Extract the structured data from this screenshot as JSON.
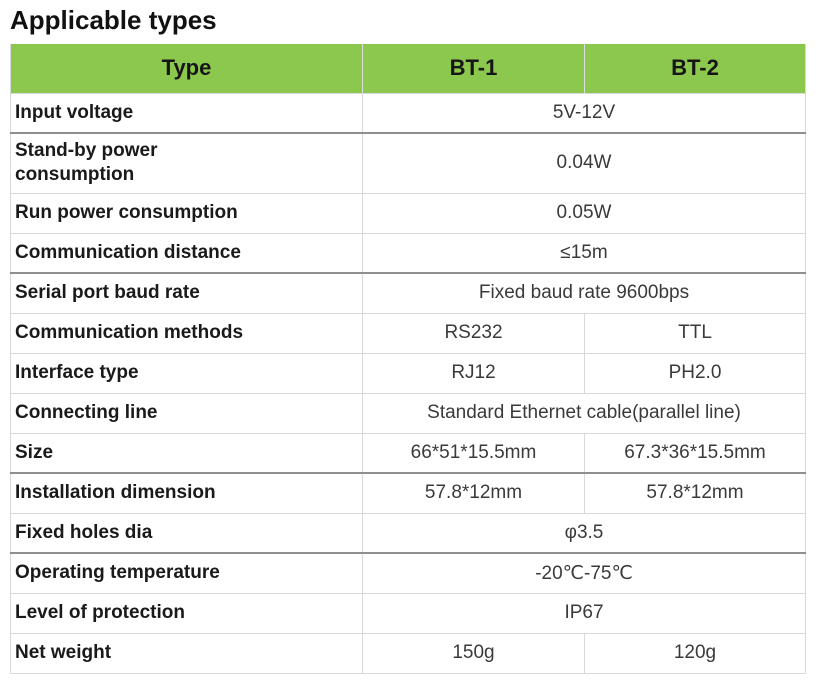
{
  "page": {
    "title": "Applicable types"
  },
  "table": {
    "columns": [
      "Type",
      "BT-1",
      "BT-2"
    ],
    "rows": [
      {
        "label": "Input voltage",
        "span": "5V-12V"
      },
      {
        "label": "Stand-by power consumption",
        "span": "0.04W"
      },
      {
        "label": "Run power consumption",
        "span": "0.05W"
      },
      {
        "label": "Communication distance",
        "span": "≤15m"
      },
      {
        "label": "Serial port baud rate",
        "span": "Fixed baud rate 9600bps"
      },
      {
        "label": "Communication methods",
        "bt1": "RS232",
        "bt2": "TTL"
      },
      {
        "label": "Interface type",
        "bt1": "RJ12",
        "bt2": "PH2.0"
      },
      {
        "label": "Connecting line",
        "span": "Standard Ethernet cable(parallel line)"
      },
      {
        "label": "Size",
        "bt1": "66*51*15.5mm",
        "bt2": "67.3*36*15.5mm"
      },
      {
        "label": "Installation dimension",
        "bt1": "57.8*12mm",
        "bt2": "57.8*12mm"
      },
      {
        "label": "Fixed holes dia",
        "span": "φ3.5"
      },
      {
        "label": "Operating temperature",
        "span": "-20℃-75℃"
      },
      {
        "label": "Level of protection",
        "span": "IP67"
      },
      {
        "label": "Net weight",
        "bt1": "150g",
        "bt2": "120g"
      }
    ],
    "colors": {
      "header_bg": "#8cc84e",
      "header_text": "#161616",
      "label_text": "#1a1a1a",
      "value_text": "#3a3a3a",
      "border_light": "#d9d9d9",
      "border_dark": "#8f8f8f"
    }
  }
}
